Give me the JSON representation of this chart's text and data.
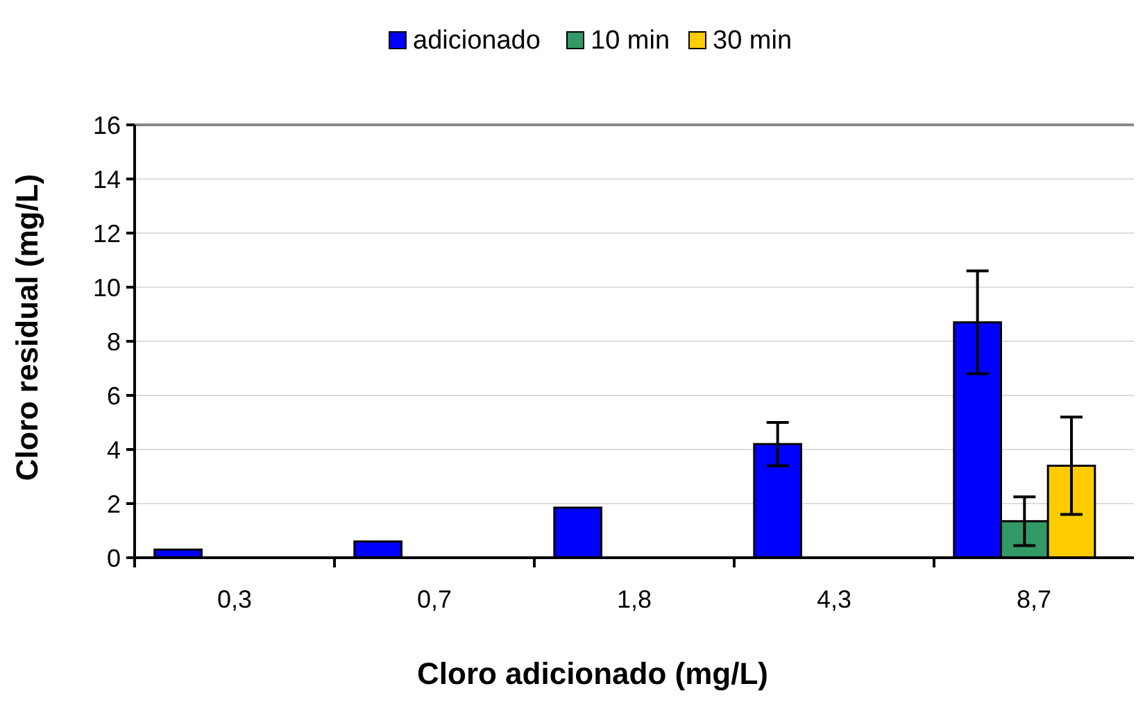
{
  "chart_data": {
    "type": "bar",
    "xlabel": "Cloro adicionado (mg/L)",
    "ylabel": "Cloro residual (mg/L)",
    "categories": [
      "0,3",
      "0,7",
      "1,8",
      "4,3",
      "8,7"
    ],
    "series": [
      {
        "name": "adicionado",
        "color": "#0000ff",
        "values": [
          0.3,
          0.6,
          1.85,
          4.2,
          8.7
        ],
        "errors": [
          null,
          null,
          null,
          0.8,
          1.9
        ]
      },
      {
        "name": "10 min",
        "color": "#339966",
        "values": [
          null,
          null,
          null,
          null,
          1.35
        ],
        "errors": [
          null,
          null,
          null,
          null,
          0.9
        ]
      },
      {
        "name": "30 min",
        "color": "#ffcc00",
        "values": [
          null,
          null,
          null,
          null,
          3.4
        ],
        "errors": [
          null,
          null,
          null,
          null,
          1.8
        ]
      }
    ],
    "ylim": [
      0,
      16
    ],
    "yticks": [
      0,
      2,
      4,
      6,
      8,
      10,
      12,
      14,
      16
    ],
    "grid": "y",
    "legend": "top"
  }
}
